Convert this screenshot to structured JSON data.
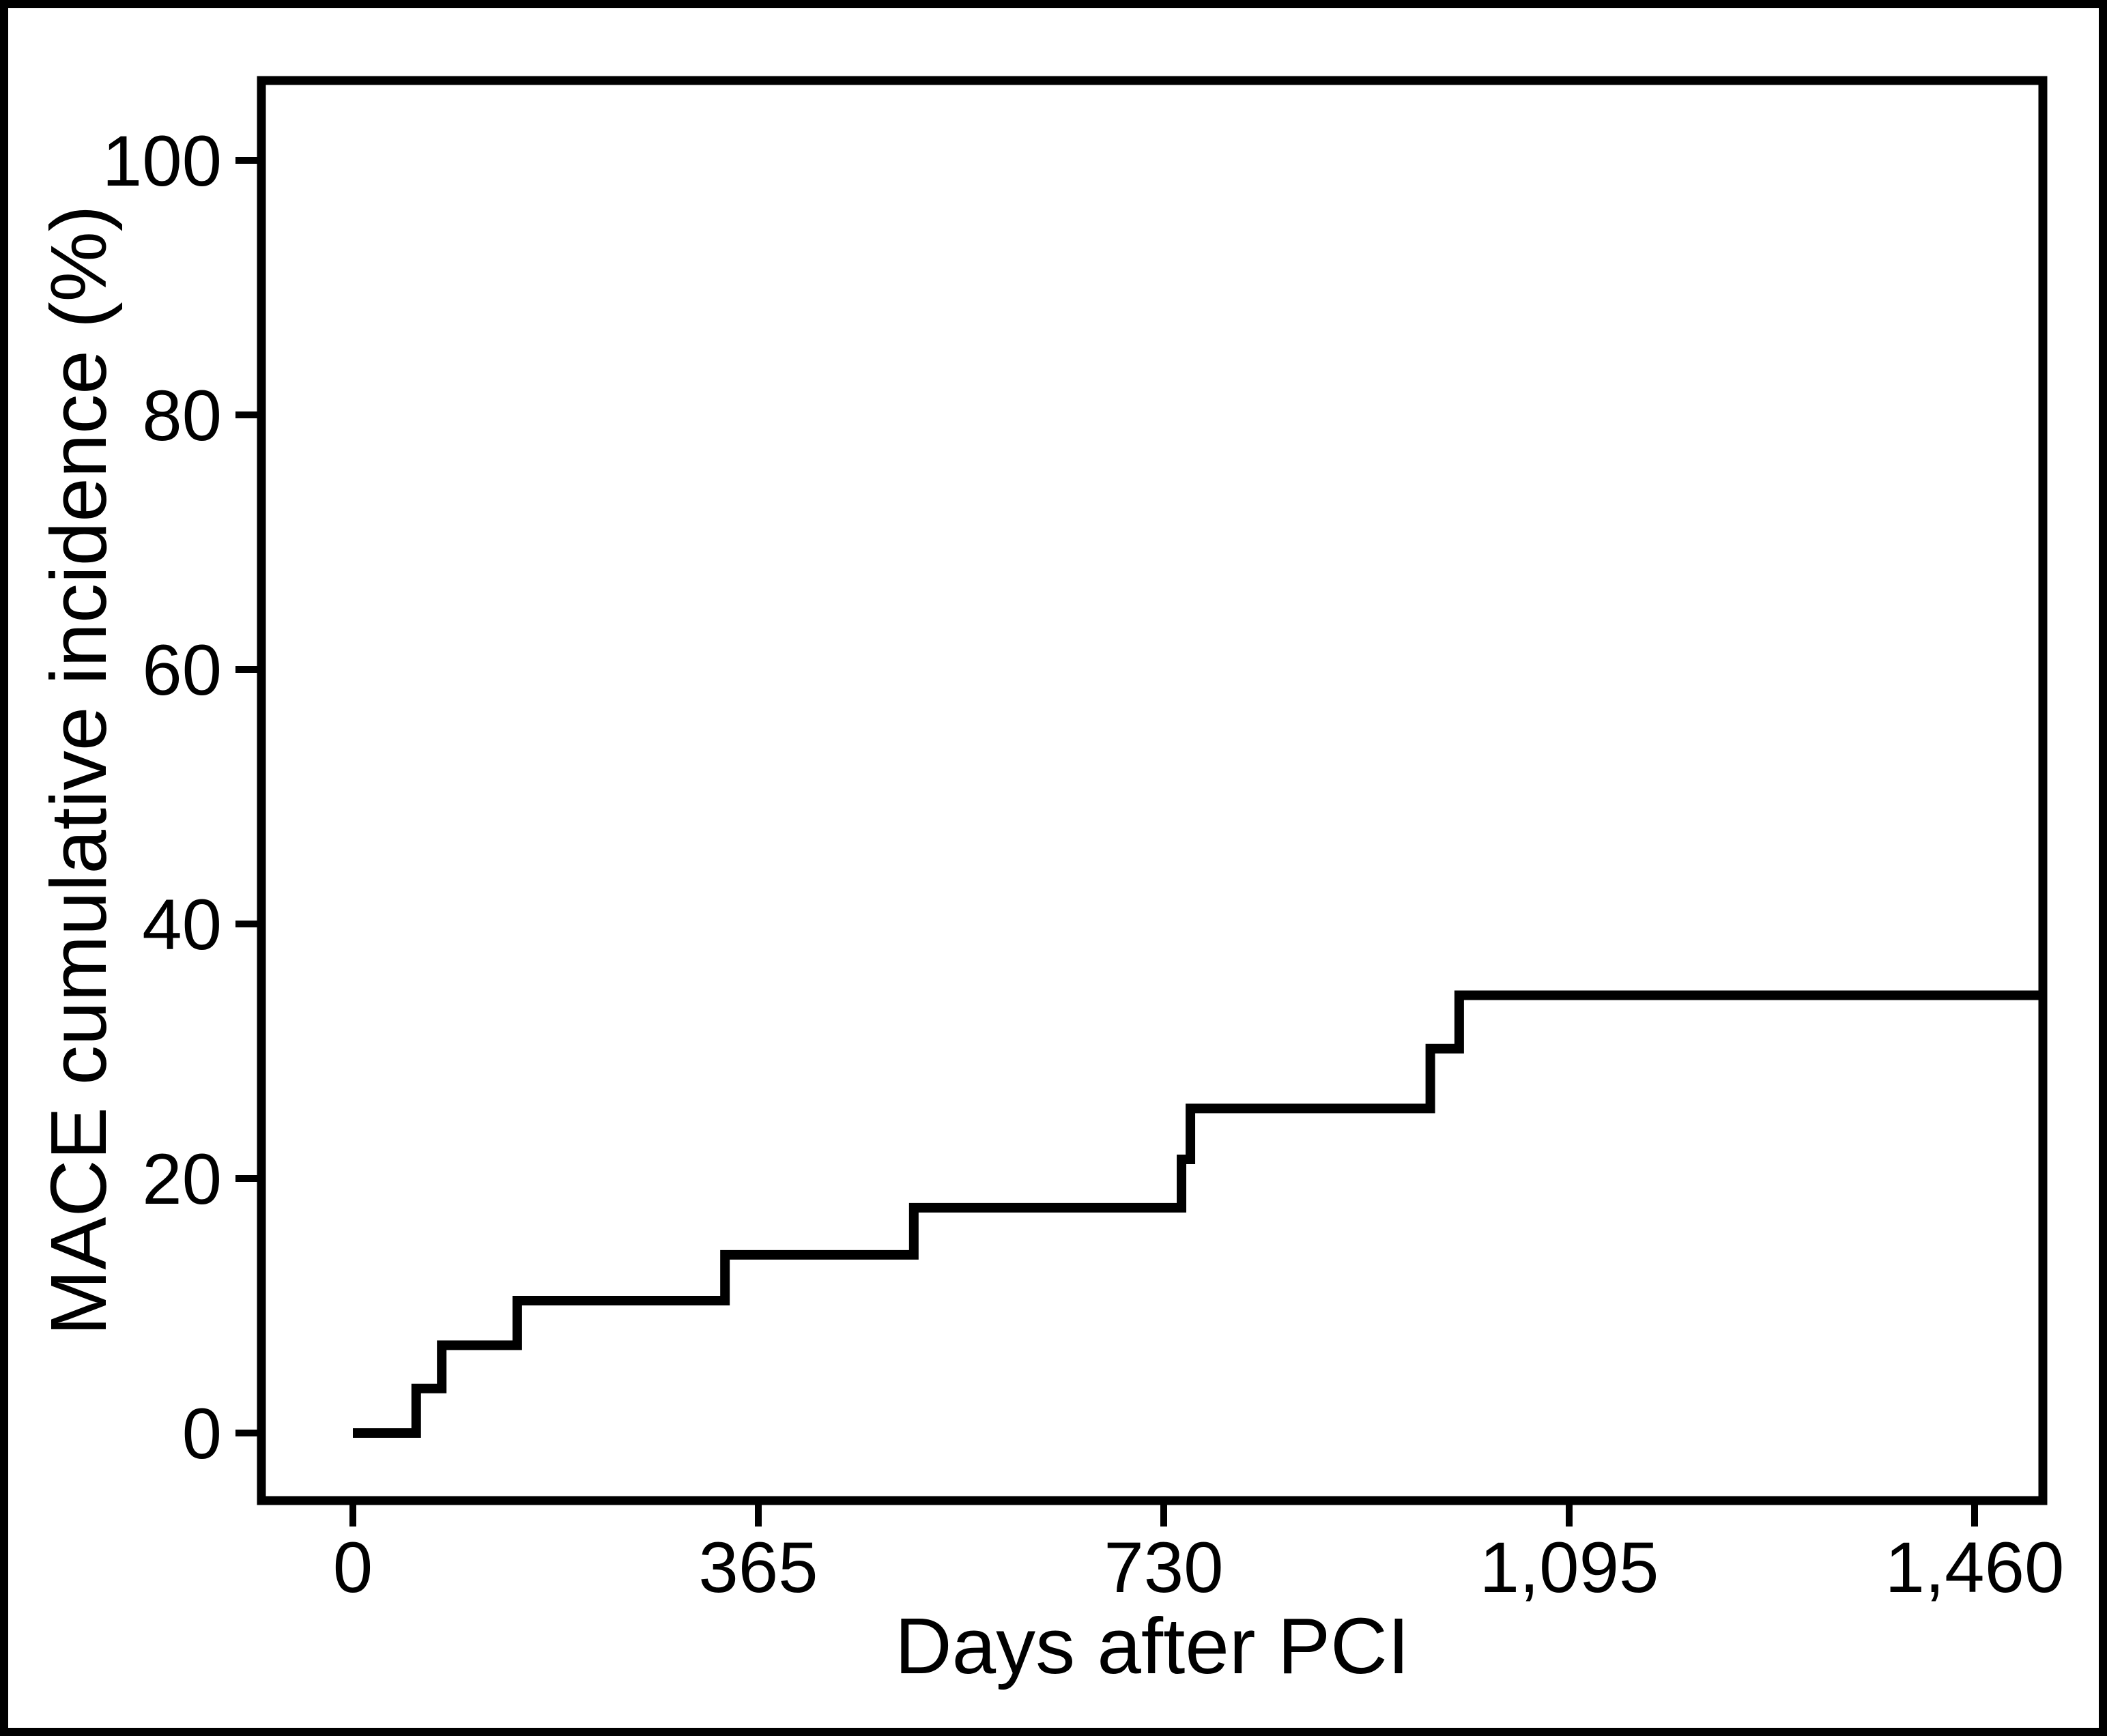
{
  "figure": {
    "background": "#ffffff",
    "ink_color": "#000000"
  },
  "chart_data": {
    "type": "line",
    "style": "kaplan-meier-step",
    "title": "",
    "xlabel": "Days after PCI",
    "ylabel": "MACE cumulative incidence (%)",
    "grid": false,
    "legend": false,
    "line_color": "#000000",
    "x_range_days": [
      0,
      1460
    ],
    "y_range_pct": [
      0,
      100
    ],
    "x_ticks": [
      {
        "value": 0,
        "label": "0"
      },
      {
        "value": 365,
        "label": "365"
      },
      {
        "value": 730,
        "label": "730"
      },
      {
        "value": 1095,
        "label": "1,095"
      },
      {
        "value": 1460,
        "label": "1,460"
      }
    ],
    "y_ticks": [
      {
        "value": 0,
        "label": "0"
      },
      {
        "value": 20,
        "label": "20"
      },
      {
        "value": 40,
        "label": "40"
      },
      {
        "value": 60,
        "label": "60"
      },
      {
        "value": 80,
        "label": "80"
      },
      {
        "value": 100,
        "label": "100"
      }
    ],
    "series": [
      {
        "name": "MACE cumulative incidence",
        "color": "#000000",
        "start_point": {
          "day": 0,
          "pct": 0
        },
        "steps": [
          {
            "day": 57,
            "pct": 3.5
          },
          {
            "day": 80,
            "pct": 6.9
          },
          {
            "day": 148,
            "pct": 10.4
          },
          {
            "day": 335,
            "pct": 14.0
          },
          {
            "day": 505,
            "pct": 17.7
          },
          {
            "day": 746,
            "pct": 21.5
          },
          {
            "day": 754,
            "pct": 25.5
          },
          {
            "day": 970,
            "pct": 30.2
          },
          {
            "day": 996,
            "pct": 34.4
          }
        ],
        "curve_end_day": 1521
      }
    ]
  }
}
